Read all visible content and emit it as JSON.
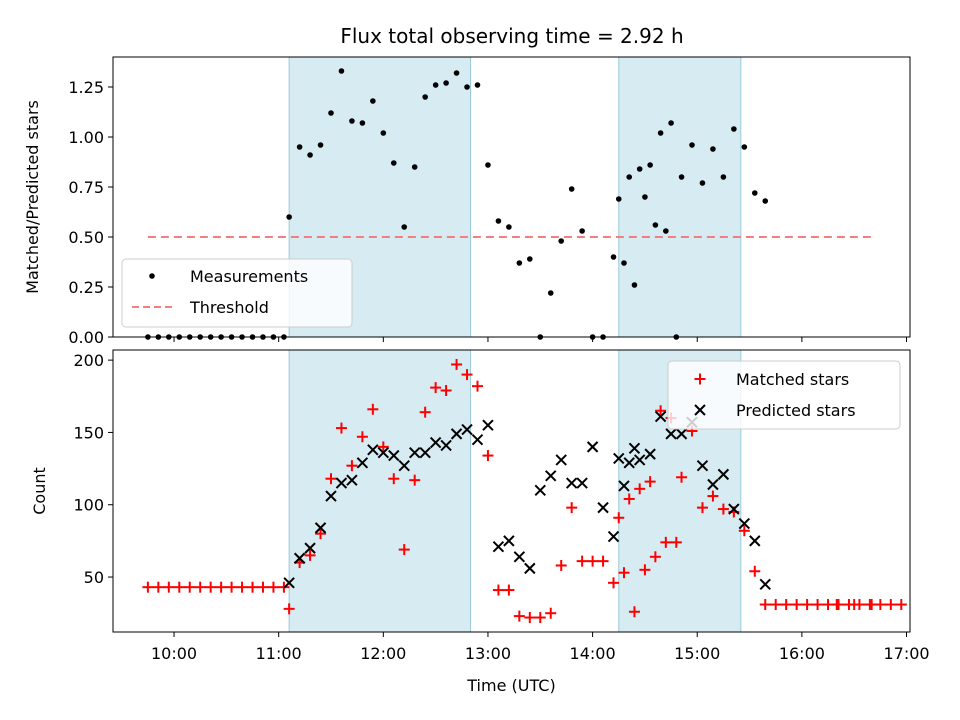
{
  "chart_data": [
    {
      "type": "scatter",
      "title": "Flux total observing time = 2.92 h",
      "xlabel": "",
      "ylabel": "Matched/Predicted stars",
      "ylim": [
        0,
        1.4
      ],
      "xlim": [
        "09:25",
        "17:02"
      ],
      "x_ticks": [
        "10:00",
        "11:00",
        "12:00",
        "13:00",
        "14:00",
        "15:00",
        "16:00",
        "17:00"
      ],
      "x_tick_labels_shown": false,
      "y_ticks": [
        "0.00",
        "0.25",
        "0.50",
        "0.75",
        "1.00",
        "1.25"
      ],
      "shaded_intervals": [
        [
          "11:06",
          "12:50"
        ],
        [
          "14:15",
          "15:25"
        ]
      ],
      "threshold": {
        "name": "Threshold",
        "value": 0.5,
        "x_range": [
          "09:45",
          "16:40"
        ],
        "color": "#f08080",
        "style": "dashed"
      },
      "legend_position": "lower-left",
      "series": [
        {
          "name": "Measurements",
          "marker": "dot",
          "color": "#000000",
          "points": [
            [
              "09:45",
              0
            ],
            [
              "09:51",
              0
            ],
            [
              "09:57",
              0
            ],
            [
              "10:03",
              0
            ],
            [
              "10:09",
              0
            ],
            [
              "10:15",
              0
            ],
            [
              "10:21",
              0
            ],
            [
              "10:27",
              0
            ],
            [
              "10:33",
              0
            ],
            [
              "10:39",
              0
            ],
            [
              "10:45",
              0
            ],
            [
              "10:51",
              0
            ],
            [
              "10:57",
              0
            ],
            [
              "11:03",
              0
            ],
            [
              "11:06",
              0.6
            ],
            [
              "11:12",
              0.95
            ],
            [
              "11:18",
              0.91
            ],
            [
              "11:24",
              0.96
            ],
            [
              "11:30",
              1.12
            ],
            [
              "11:36",
              1.33
            ],
            [
              "11:42",
              1.08
            ],
            [
              "11:48",
              1.07
            ],
            [
              "11:54",
              1.18
            ],
            [
              "12:00",
              1.02
            ],
            [
              "12:06",
              0.87
            ],
            [
              "12:12",
              0.55
            ],
            [
              "12:18",
              0.85
            ],
            [
              "12:24",
              1.2
            ],
            [
              "12:30",
              1.26
            ],
            [
              "12:36",
              1.27
            ],
            [
              "12:42",
              1.32
            ],
            [
              "12:48",
              1.25
            ],
            [
              "12:54",
              1.26
            ],
            [
              "13:00",
              0.86
            ],
            [
              "13:06",
              0.58
            ],
            [
              "13:12",
              0.55
            ],
            [
              "13:18",
              0.37
            ],
            [
              "13:24",
              0.39
            ],
            [
              "13:30",
              0
            ],
            [
              "13:36",
              0.22
            ],
            [
              "13:42",
              0.48
            ],
            [
              "13:48",
              0.74
            ],
            [
              "13:54",
              0.53
            ],
            [
              "14:00",
              0
            ],
            [
              "14:06",
              0
            ],
            [
              "14:12",
              0.4
            ],
            [
              "14:18",
              0.37
            ],
            [
              "14:24",
              0.26
            ],
            [
              "14:30",
              0.7
            ],
            [
              "14:36",
              0.56
            ],
            [
              "14:42",
              0.53
            ],
            [
              "14:48",
              0
            ],
            [
              "14:15",
              0.69
            ],
            [
              "14:21",
              0.8
            ],
            [
              "14:27",
              0.84
            ],
            [
              "14:33",
              0.86
            ],
            [
              "14:39",
              1.02
            ],
            [
              "14:45",
              1.07
            ],
            [
              "14:51",
              0.8
            ],
            [
              "14:57",
              0.96
            ],
            [
              "15:03",
              0.77
            ],
            [
              "15:09",
              0.94
            ],
            [
              "15:15",
              0.8
            ],
            [
              "15:21",
              1.04
            ],
            [
              "15:27",
              0.95
            ],
            [
              "15:33",
              0.72
            ],
            [
              "15:39",
              0.68
            ]
          ]
        }
      ]
    },
    {
      "type": "scatter",
      "title": "",
      "xlabel": "Time (UTC)",
      "ylabel": "Count",
      "ylim": [
        12,
        207
      ],
      "xlim": [
        "09:25",
        "17:02"
      ],
      "x_ticks": [
        "10:00",
        "11:00",
        "12:00",
        "13:00",
        "14:00",
        "15:00",
        "16:00",
        "17:00"
      ],
      "y_ticks": [
        "50",
        "100",
        "150",
        "200"
      ],
      "shaded_intervals": [
        [
          "11:06",
          "12:50"
        ],
        [
          "14:15",
          "15:25"
        ]
      ],
      "legend_position": "upper-right",
      "series": [
        {
          "name": "Matched stars",
          "marker": "plus",
          "color": "#ff0000",
          "points": [
            [
              "09:45",
              43
            ],
            [
              "09:51",
              43
            ],
            [
              "09:57",
              43
            ],
            [
              "10:03",
              43
            ],
            [
              "10:09",
              43
            ],
            [
              "10:15",
              43
            ],
            [
              "10:21",
              43
            ],
            [
              "10:27",
              43
            ],
            [
              "10:33",
              43
            ],
            [
              "10:39",
              43
            ],
            [
              "10:45",
              43
            ],
            [
              "10:51",
              43
            ],
            [
              "10:57",
              43
            ],
            [
              "11:03",
              43
            ],
            [
              "11:06",
              28
            ],
            [
              "11:12",
              60
            ],
            [
              "11:18",
              65
            ],
            [
              "11:24",
              80
            ],
            [
              "11:30",
              118
            ],
            [
              "11:36",
              153
            ],
            [
              "11:42",
              127
            ],
            [
              "11:48",
              147
            ],
            [
              "11:54",
              166
            ],
            [
              "12:00",
              140
            ],
            [
              "12:06",
              118
            ],
            [
              "12:12",
              69
            ],
            [
              "12:18",
              117
            ],
            [
              "12:24",
              164
            ],
            [
              "12:30",
              181
            ],
            [
              "12:36",
              179
            ],
            [
              "12:42",
              197
            ],
            [
              "12:48",
              190
            ],
            [
              "12:54",
              182
            ],
            [
              "13:00",
              134
            ],
            [
              "13:06",
              41
            ],
            [
              "13:12",
              41
            ],
            [
              "13:18",
              23
            ],
            [
              "13:24",
              22
            ],
            [
              "13:30",
              22
            ],
            [
              "13:36",
              25
            ],
            [
              "13:42",
              58
            ],
            [
              "13:48",
              98
            ],
            [
              "13:54",
              61
            ],
            [
              "14:00",
              61
            ],
            [
              "14:06",
              61
            ],
            [
              "14:12",
              46
            ],
            [
              "14:18",
              53
            ],
            [
              "14:24",
              26
            ],
            [
              "14:30",
              55
            ],
            [
              "14:36",
              64
            ],
            [
              "14:42",
              74
            ],
            [
              "14:48",
              74
            ],
            [
              "14:15",
              91
            ],
            [
              "14:21",
              104
            ],
            [
              "14:27",
              111
            ],
            [
              "14:33",
              116
            ],
            [
              "14:39",
              165
            ],
            [
              "14:45",
              160
            ],
            [
              "14:51",
              119
            ],
            [
              "14:57",
              151
            ],
            [
              "15:03",
              98
            ],
            [
              "15:09",
              106
            ],
            [
              "15:15",
              97
            ],
            [
              "15:21",
              95
            ],
            [
              "15:27",
              82
            ],
            [
              "15:33",
              54
            ],
            [
              "15:39",
              31
            ],
            [
              "15:45",
              31
            ],
            [
              "15:51",
              31
            ],
            [
              "15:57",
              31
            ],
            [
              "16:03",
              31
            ],
            [
              "16:09",
              31
            ],
            [
              "16:15",
              31
            ],
            [
              "16:21",
              31
            ],
            [
              "16:27",
              31
            ],
            [
              "16:33",
              31
            ],
            [
              "16:39",
              31
            ],
            [
              "16:45",
              31
            ],
            [
              "16:51",
              31
            ],
            [
              "16:57",
              31
            ],
            [
              "16:20",
              31
            ],
            [
              "16:30",
              31
            ],
            [
              "16:40",
              31
            ]
          ]
        },
        {
          "name": "Predicted stars",
          "marker": "x",
          "color": "#000000",
          "points": [
            [
              "11:06",
              46
            ],
            [
              "11:12",
              63
            ],
            [
              "11:18",
              70
            ],
            [
              "11:24",
              84
            ],
            [
              "11:30",
              106
            ],
            [
              "11:36",
              115
            ],
            [
              "11:42",
              117
            ],
            [
              "11:48",
              129
            ],
            [
              "11:54",
              138
            ],
            [
              "12:00",
              136
            ],
            [
              "12:06",
              134
            ],
            [
              "12:12",
              127
            ],
            [
              "12:18",
              136
            ],
            [
              "12:24",
              136
            ],
            [
              "12:30",
              143
            ],
            [
              "12:36",
              141
            ],
            [
              "12:42",
              149
            ],
            [
              "12:48",
              152
            ],
            [
              "12:54",
              145
            ],
            [
              "13:00",
              155
            ],
            [
              "13:06",
              71
            ],
            [
              "13:12",
              75
            ],
            [
              "13:18",
              64
            ],
            [
              "13:24",
              56
            ],
            [
              "13:30",
              110
            ],
            [
              "13:36",
              120
            ],
            [
              "13:42",
              131
            ],
            [
              "13:48",
              115
            ],
            [
              "13:54",
              115
            ],
            [
              "14:00",
              140
            ],
            [
              "14:06",
              98
            ],
            [
              "14:12",
              78
            ],
            [
              "14:18",
              113
            ],
            [
              "14:24",
              139
            ],
            [
              "14:15",
              132
            ],
            [
              "14:21",
              129
            ],
            [
              "14:27",
              131
            ],
            [
              "14:33",
              135
            ],
            [
              "14:39",
              161
            ],
            [
              "14:45",
              149
            ],
            [
              "14:51",
              149
            ],
            [
              "14:57",
              157
            ],
            [
              "15:03",
              127
            ],
            [
              "15:09",
              114
            ],
            [
              "15:15",
              121
            ],
            [
              "15:21",
              97
            ],
            [
              "15:27",
              87
            ],
            [
              "15:33",
              75
            ],
            [
              "15:39",
              45
            ]
          ]
        }
      ]
    }
  ]
}
